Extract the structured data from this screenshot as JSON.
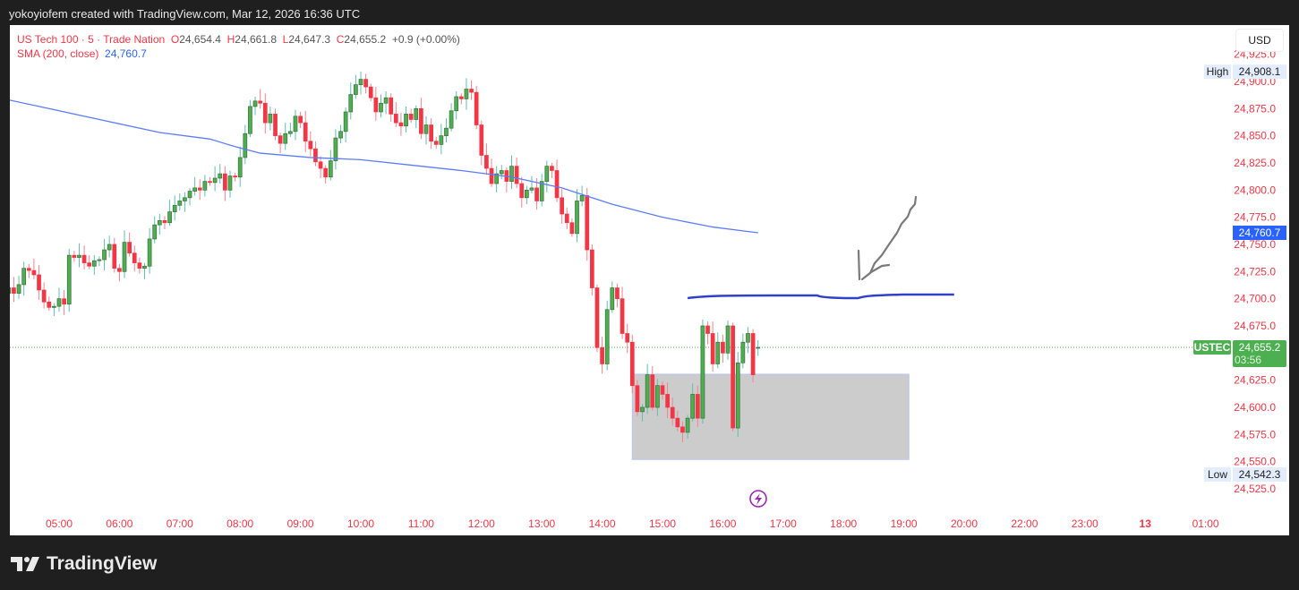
{
  "header": {
    "credit": "yokoyiofem created with TradingView.com, Mar 12, 2026 16:36 UTC"
  },
  "legend": {
    "symbol": "US Tech 100 · 5 · Trade Nation",
    "o_label": "O",
    "o": "24,654.4",
    "h_label": "H",
    "h": "24,661.8",
    "l_label": "L",
    "l": "24,647.3",
    "c_label": "C",
    "c": "24,655.2",
    "change": "+0.9 (+0.00%)",
    "sma_label": "SMA (200, close)",
    "sma_value": "24,760.7"
  },
  "currency": "USD",
  "logo_text": "TradingView",
  "chart_data": {
    "type": "candlestick",
    "symbol": "USTEC",
    "interval": "5",
    "first_bar": "04:10",
    "closes": [
      24710,
      24705,
      24713,
      24728,
      24726,
      24722,
      24708,
      24697,
      24692,
      24693,
      24700,
      24695,
      24740,
      24738,
      24740,
      24733,
      24730,
      24735,
      24736,
      24745,
      24750,
      24728,
      24725,
      24752,
      24742,
      24733,
      24728,
      24730,
      24755,
      24768,
      24772,
      24770,
      24780,
      24786,
      24790,
      24793,
      24799,
      24802,
      24800,
      24808,
      24807,
      24811,
      24815,
      24800,
      24813,
      24812,
      24830,
      24852,
      24877,
      24882,
      24880,
      24862,
      24870,
      24850,
      24843,
      24852,
      24854,
      24868,
      24862,
      24845,
      24838,
      24826,
      24820,
      24812,
      24827,
      24848,
      24854,
      24872,
      24888,
      24897,
      24902,
      24895,
      24885,
      24872,
      24880,
      24885,
      24870,
      24862,
      24859,
      24870,
      24865,
      24875,
      24852,
      24860,
      24845,
      24842,
      24850,
      24857,
      24873,
      24886,
      24884,
      24893,
      24890,
      24860,
      24832,
      24820,
      24806,
      24815,
      24818,
      24808,
      24822,
      24806,
      24793,
      24800,
      24802,
      24790,
      24808,
      24822,
      24818,
      24793,
      24778,
      24770,
      24760,
      24790,
      24795,
      24745,
      24710,
      24655,
      24640,
      24690,
      24710,
      24700,
      24668,
      24660,
      24620,
      24596,
      24600,
      24630,
      24600,
      24620,
      24612,
      24600,
      24590,
      24582,
      24577,
      24590,
      24612,
      24590,
      24675,
      24668,
      24640,
      24660,
      24650,
      24675,
      24581,
      24641,
      24660,
      24668,
      24630,
      24655.2
    ],
    "last_bar": {
      "open": 24654.4,
      "high": 24661.8,
      "low": 24647.3,
      "close": 24655.2
    },
    "sma": {
      "name": "SMA (200, close)",
      "points": [
        [
          0,
          24883
        ],
        [
          9,
          24874
        ],
        [
          20,
          24863
        ],
        [
          30,
          24853
        ],
        [
          40,
          24847
        ],
        [
          45,
          24840
        ],
        [
          50,
          24834
        ],
        [
          60,
          24830
        ],
        [
          70,
          24828
        ],
        [
          80,
          24823
        ],
        [
          90,
          24818
        ],
        [
          100,
          24812
        ],
        [
          110,
          24802
        ],
        [
          120,
          24787
        ],
        [
          130,
          24775
        ],
        [
          140,
          24766
        ],
        [
          149,
          24760.7
        ]
      ]
    },
    "y_ticks": [
      "24,925.0",
      "24,900.0",
      "24,875.0",
      "24,850.0",
      "24,825.0",
      "24,800.0",
      "24,775.0",
      "24,750.0",
      "24,725.0",
      "24,700.0",
      "24,675.0",
      "24,625.0",
      "24,600.0",
      "24,575.0",
      "24,550.0",
      "24,525.0"
    ],
    "y_tick_values": [
      24925,
      24900,
      24875,
      24850,
      24825,
      24800,
      24775,
      24750,
      24725,
      24700,
      24675,
      24625,
      24600,
      24575,
      24550,
      24525
    ],
    "x_ticks": [
      "05:00",
      "06:00",
      "07:00",
      "08:00",
      "09:00",
      "10:00",
      "11:00",
      "12:00",
      "13:00",
      "14:00",
      "15:00",
      "16:00",
      "17:00",
      "18:00",
      "19:00",
      "20:00",
      "22:00",
      "23:00",
      "13",
      "01:00"
    ],
    "high_marker": {
      "label": "High",
      "value": "24,908.1"
    },
    "low_marker": {
      "label": "Low",
      "value": "24,542.3"
    },
    "sma_marker": "24,760.7",
    "price_marker": {
      "label": "USTEC",
      "value": "24,655.2",
      "countdown": "03:56"
    },
    "drawings": {
      "rectangle": {
        "from": "14:30",
        "to": "19:05",
        "top": 24630.5,
        "bottom": 24552
      },
      "hline": {
        "from": "15:25",
        "to": "19:50",
        "price": 24703
      }
    },
    "colors": {
      "up": "#4caf50",
      "down": "#f23645",
      "sma": "#2962ff",
      "hline": "#3041c8",
      "arrow": "#7a7a7a",
      "box": "#cccccc",
      "axis_text": "#f23645"
    }
  }
}
